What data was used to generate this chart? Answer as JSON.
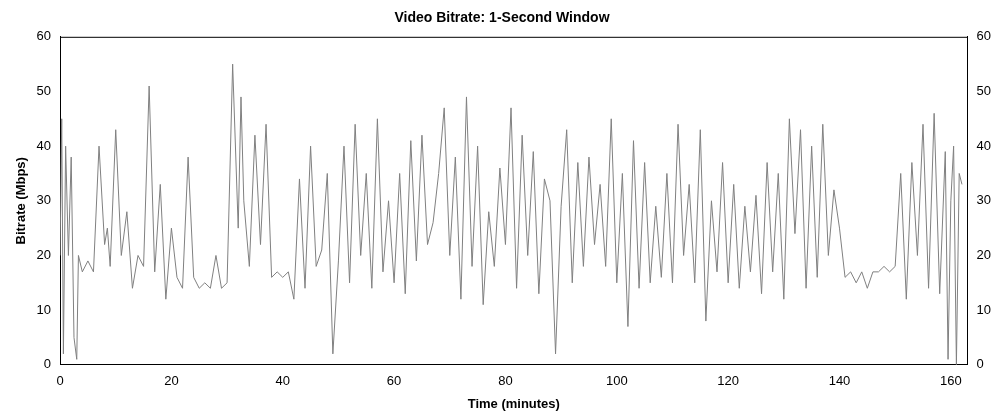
{
  "chart_data": {
    "type": "line",
    "title": "Video Bitrate: 1-Second Window",
    "xlabel": "Time (minutes)",
    "ylabel": "Bitrate (Mbps)",
    "xlim": [
      0,
      163
    ],
    "xticks": [
      0,
      20,
      40,
      60,
      80,
      100,
      120,
      140,
      160
    ],
    "ylim": [
      0,
      60
    ],
    "yticks": [
      0,
      10,
      20,
      30,
      40,
      50,
      60
    ],
    "y2lim": [
      0,
      60
    ],
    "y2ticks": [
      0,
      10,
      20,
      30,
      40,
      50,
      60
    ],
    "grid": false,
    "legend": false,
    "marker": "none",
    "line_style": "solid",
    "series": [
      {
        "color": "#808080",
        "x": [
          0,
          0.3,
          0.6,
          1,
          1.5,
          2,
          2.5,
          3,
          3.3,
          4,
          5,
          6,
          7,
          8,
          8.5,
          9,
          10,
          11,
          12,
          13,
          14,
          15,
          16,
          17,
          18,
          19,
          20,
          21,
          22,
          23,
          24,
          25,
          26,
          27,
          28,
          29,
          30,
          31,
          32,
          32.5,
          33,
          34,
          35,
          36,
          37,
          38,
          39,
          40,
          41,
          42,
          43,
          44,
          45,
          46,
          47,
          48,
          49,
          50,
          51,
          52,
          53,
          54,
          55,
          56,
          57,
          58,
          59,
          60,
          61,
          62,
          63,
          64,
          65,
          66,
          67,
          68,
          69,
          70,
          71,
          72,
          73,
          74,
          75,
          76,
          77,
          78,
          79,
          80,
          81,
          82,
          83,
          84,
          85,
          86,
          87,
          88,
          89,
          90,
          91,
          92,
          93,
          94,
          95,
          96,
          97,
          98,
          99,
          100,
          101,
          102,
          103,
          104,
          105,
          106,
          107,
          108,
          109,
          110,
          111,
          112,
          113,
          114,
          115,
          116,
          117,
          118,
          119,
          120,
          121,
          122,
          123,
          124,
          125,
          126,
          127,
          128,
          129,
          130,
          131,
          132,
          133,
          134,
          135,
          136,
          137,
          138,
          139,
          140,
          141,
          142,
          143,
          144,
          145,
          146,
          147,
          148,
          149,
          150,
          151,
          152,
          153,
          154,
          155,
          156,
          157,
          158,
          159,
          159.5,
          160,
          160.5,
          161,
          161.5,
          162
        ],
        "values": [
          20,
          45,
          2,
          40,
          20,
          38,
          5,
          1,
          20,
          17,
          19,
          17,
          40,
          22,
          25,
          18,
          43,
          20,
          28,
          14,
          20,
          18,
          51,
          17,
          33,
          12,
          25,
          16,
          14,
          38,
          16,
          14,
          15,
          14,
          20,
          14,
          15,
          55,
          25,
          49,
          30,
          18,
          42,
          22,
          44,
          16,
          17,
          16,
          17,
          12,
          34,
          14,
          40,
          18,
          21,
          35,
          2,
          19,
          40,
          15,
          44,
          20,
          35,
          14,
          45,
          17,
          30,
          15,
          35,
          13,
          41,
          19,
          42,
          22,
          26,
          35,
          47,
          20,
          38,
          12,
          49,
          18,
          40,
          11,
          28,
          18,
          36,
          22,
          47,
          14,
          42,
          20,
          39,
          13,
          34,
          30,
          2,
          29,
          43,
          15,
          37,
          18,
          38,
          22,
          33,
          18,
          45,
          15,
          35,
          7,
          41,
          14,
          37,
          15,
          29,
          16,
          35,
          15,
          44,
          20,
          33,
          15,
          43,
          8,
          30,
          17,
          37,
          15,
          33,
          14,
          29,
          17,
          31,
          13,
          37,
          17,
          35,
          12,
          45,
          24,
          43,
          14,
          40,
          16,
          44,
          20,
          32,
          25,
          16,
          17,
          15,
          17,
          14,
          17,
          17,
          18,
          17,
          18,
          35,
          12,
          37,
          20,
          44,
          14,
          46,
          13,
          39,
          1,
          30,
          40,
          0,
          35,
          33
        ]
      }
    ]
  }
}
